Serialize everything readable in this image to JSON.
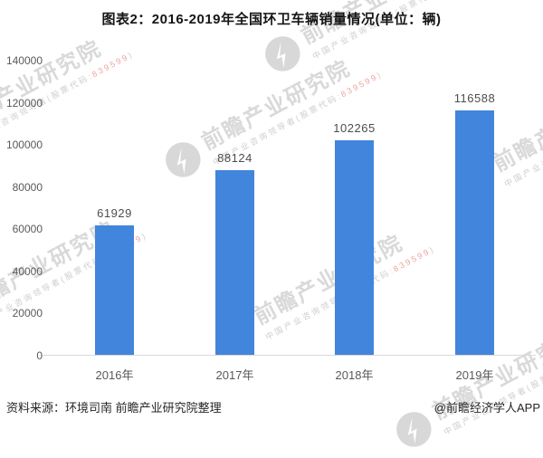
{
  "title": "图表2：2016-2019年全国环卫车辆销量情况(单位：辆)",
  "chart_data": {
    "type": "bar",
    "title": "图表2：2016-2019年全国环卫车辆销量情况(单位：辆)",
    "categories": [
      "2016年",
      "2017年",
      "2018年",
      "2019年"
    ],
    "values": [
      61929,
      88124,
      102265,
      116588
    ],
    "xlabel": "",
    "ylabel": "",
    "ylim": [
      0,
      140000
    ],
    "ytick_interval": 20000,
    "ytick_labels": [
      "140000",
      "120000",
      "100000",
      "80000",
      "60000",
      "40000",
      "20000",
      "0"
    ],
    "grid": false,
    "legend": "none",
    "bar_color": "#4285DC",
    "data_label_color": "#4d4d4d"
  },
  "footer": {
    "source": "资料来源：环境司南 前瞻产业研究院整理",
    "credit": "@前瞻经济学人APP"
  },
  "watermark": {
    "brand": "前瞻产业研究院",
    "tagline_prefix": "中国产业咨询领导者(股票代码:",
    "tagline_code": "839599",
    "tagline_suffix": ")"
  }
}
